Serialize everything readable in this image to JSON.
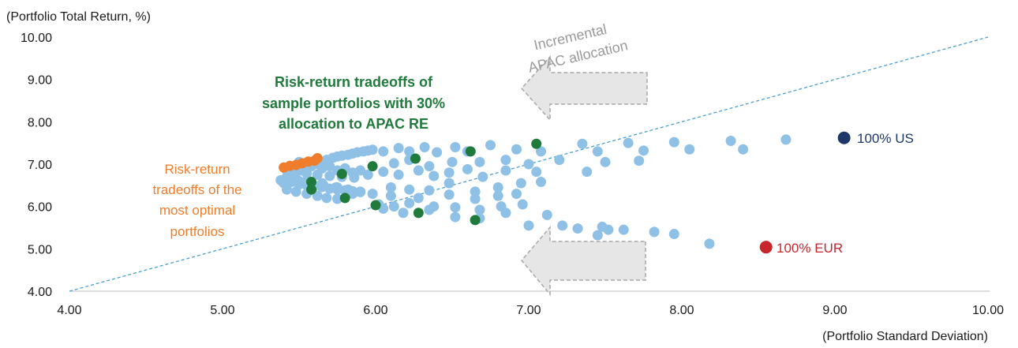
{
  "chart_data": {
    "type": "scatter",
    "title": "",
    "ylabel": "(Portfolio Total Return, %)",
    "xlabel": "(Portfolio Standard Deviation)",
    "xlim": [
      4.0,
      10.0
    ],
    "ylim": [
      4.0,
      10.0
    ],
    "x_ticks": [
      "4.00",
      "5.00",
      "6.00",
      "7.00",
      "8.00",
      "9.00",
      "10.00"
    ],
    "y_ticks": [
      "4.00",
      "5.00",
      "6.00",
      "7.00",
      "8.00",
      "9.00",
      "10.00"
    ],
    "x_tick_values": [
      4,
      5,
      6,
      7,
      8,
      9,
      10
    ],
    "y_tick_values": [
      4,
      5,
      6,
      7,
      8,
      9,
      10
    ],
    "grid": false,
    "reference_line": {
      "x": [
        4.0,
        10.0
      ],
      "y": [
        4.0,
        10.0
      ],
      "style": "dashed",
      "color": "#4a9fd0"
    },
    "annotations": {
      "green": [
        "Risk-return tradeoffs of",
        "sample portfolios with 30%",
        "allocation to APAC RE"
      ],
      "orange": [
        "Risk-return",
        "tradeoffs of the",
        "most optimal",
        "portfolios"
      ],
      "gray": [
        "Incremental",
        "APAC allocation"
      ]
    },
    "colors": {
      "portfolio": "#8fc0e6",
      "sample30": "#1f7a3c",
      "optimal": "#ef7d2c",
      "us": "#1d3868",
      "eur": "#c8262d",
      "refline": "#4a9fd0",
      "green_text": "#1f7a3c",
      "orange_text": "#ef7d2c",
      "gray_text": "#9a9a9a",
      "arrow_fill": "#e6e6e6",
      "arrow_stroke": "#a8a8a8"
    },
    "series": [
      {
        "name": "",
        "role": "portfolio",
        "x": [
          5.38,
          5.42,
          5.45,
          5.48,
          5.52,
          5.55,
          5.58,
          5.62,
          5.65,
          5.68,
          5.72,
          5.75,
          5.78,
          5.82,
          5.85,
          5.88,
          5.92,
          5.95,
          5.98,
          5.4,
          5.45,
          5.5,
          5.55,
          5.6,
          5.65,
          5.7,
          5.75,
          5.8,
          5.85,
          5.9,
          5.42,
          5.48,
          5.55,
          5.62,
          5.7,
          5.78,
          5.86,
          5.42,
          5.48,
          5.55,
          5.62,
          5.68,
          5.75,
          5.5,
          5.58,
          5.66,
          5.74,
          5.82,
          5.9,
          5.98,
          5.55,
          5.65,
          5.75,
          5.85,
          5.95,
          5.5,
          5.6,
          5.7,
          5.8,
          5.9,
          5.45,
          5.55,
          5.65,
          5.75,
          5.85,
          6.05,
          6.15,
          6.22,
          6.32,
          6.4,
          6.52,
          6.6,
          6.75,
          6.92,
          7.08,
          7.35,
          7.45,
          7.65,
          7.75,
          7.95,
          8.05,
          8.32,
          8.4,
          8.68,
          6.12,
          6.22,
          6.35,
          6.5,
          6.68,
          6.85,
          7.0,
          7.2,
          7.5,
          7.72,
          6.05,
          6.15,
          6.28,
          6.38,
          6.48,
          6.6,
          6.7,
          6.85,
          7.05,
          7.38,
          6.1,
          6.22,
          6.35,
          6.48,
          6.65,
          6.8,
          6.95,
          6.02,
          6.12,
          6.22,
          6.38,
          6.52,
          6.68,
          6.82,
          6.96,
          6.05,
          6.18,
          6.35,
          6.52,
          6.68,
          6.85,
          7.0,
          7.12,
          7.22,
          7.32,
          7.48,
          7.62,
          7.82,
          7.95,
          8.18,
          6.1,
          6.28,
          6.48,
          6.65,
          6.8,
          6.92,
          7.08,
          7.45,
          7.52
        ],
        "y": [
          6.62,
          6.7,
          6.75,
          6.8,
          6.85,
          6.9,
          6.95,
          7.0,
          7.05,
          7.1,
          7.15,
          7.18,
          7.2,
          7.22,
          7.25,
          7.28,
          7.3,
          7.32,
          7.34,
          6.55,
          6.58,
          6.52,
          6.5,
          6.48,
          6.46,
          6.42,
          6.4,
          6.38,
          6.36,
          6.34,
          6.85,
          6.82,
          6.78,
          6.75,
          6.72,
          6.7,
          6.68,
          6.4,
          6.35,
          6.3,
          6.25,
          6.2,
          6.18,
          6.6,
          6.55,
          6.5,
          6.45,
          6.4,
          6.35,
          6.3,
          6.95,
          6.9,
          6.85,
          6.8,
          6.75,
          7.05,
          7.0,
          6.95,
          6.9,
          6.85,
          6.65,
          6.6,
          6.55,
          6.45,
          6.3,
          7.3,
          7.38,
          7.3,
          7.4,
          7.28,
          7.4,
          7.3,
          7.45,
          7.35,
          7.3,
          7.48,
          7.3,
          7.5,
          7.32,
          7.52,
          7.35,
          7.55,
          7.35,
          7.58,
          7.02,
          7.1,
          6.95,
          7.05,
          7.05,
          7.1,
          7.0,
          7.1,
          7.05,
          7.08,
          6.82,
          6.75,
          6.85,
          6.72,
          6.8,
          6.88,
          6.7,
          6.85,
          6.82,
          6.82,
          6.45,
          6.4,
          6.38,
          6.55,
          6.35,
          6.45,
          6.55,
          6.05,
          6.0,
          6.08,
          6.0,
          5.98,
          5.92,
          6.0,
          6.05,
          5.95,
          5.85,
          5.92,
          5.75,
          5.72,
          5.85,
          5.55,
          5.8,
          5.55,
          5.48,
          5.52,
          5.45,
          5.4,
          5.35,
          5.12,
          6.25,
          6.2,
          6.28,
          6.18,
          6.25,
          6.3,
          6.58,
          5.32,
          5.45
        ]
      },
      {
        "name": "",
        "role": "sample30",
        "x": [
          5.58,
          5.58,
          5.78,
          5.8,
          5.98,
          6.0,
          6.26,
          6.28,
          6.62,
          6.65,
          7.05
        ],
        "y": [
          6.58,
          6.4,
          6.77,
          6.2,
          6.95,
          6.03,
          7.13,
          5.85,
          7.3,
          5.68,
          7.48
        ]
      },
      {
        "name": "",
        "role": "optimal",
        "x": [
          5.4,
          5.44,
          5.48,
          5.52,
          5.56,
          5.6,
          5.62
        ],
        "y": [
          6.92,
          6.96,
          6.98,
          7.02,
          7.06,
          7.08,
          7.14
        ]
      },
      {
        "name": "100% US",
        "role": "us",
        "x": [
          9.06
        ],
        "y": [
          7.62
        ]
      },
      {
        "name": "100% EUR",
        "role": "eur",
        "x": [
          8.55
        ],
        "y": [
          5.04
        ]
      }
    ]
  }
}
